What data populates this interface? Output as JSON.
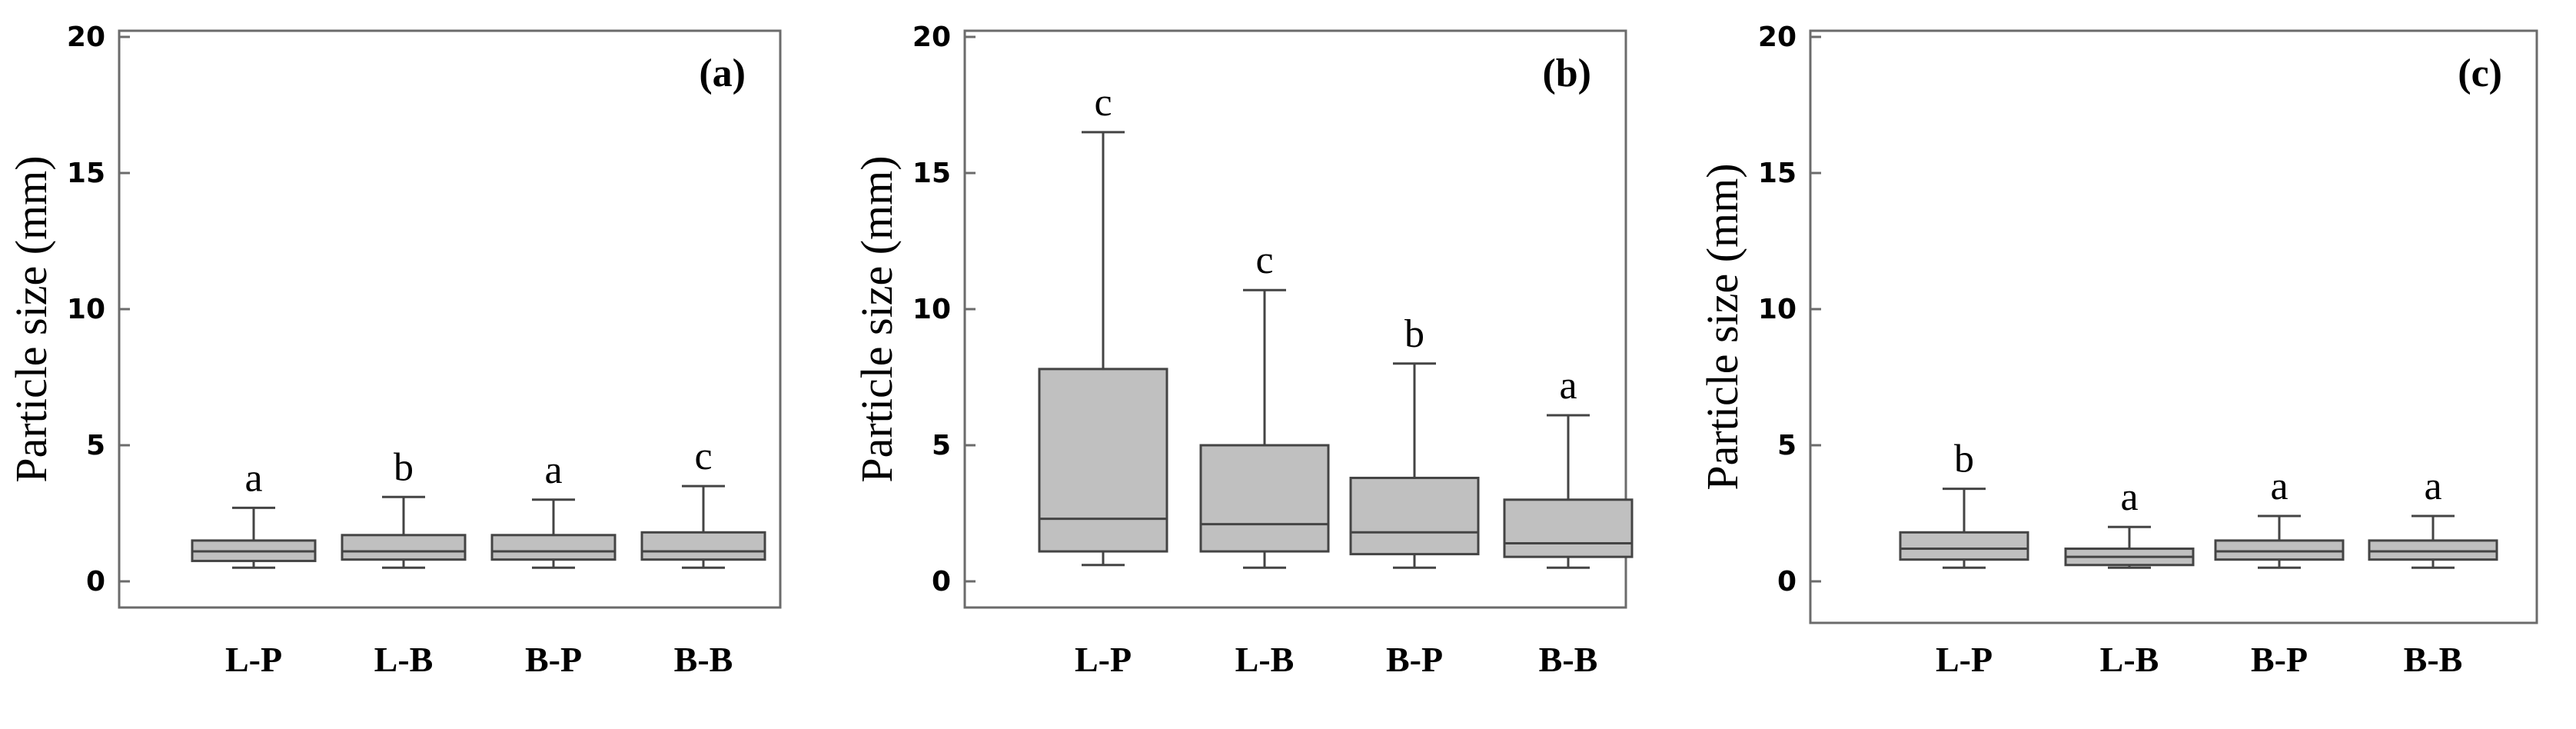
{
  "chart_data": [
    {
      "type": "box",
      "panel_label": "(a)",
      "ylabel": "Particle size (mm)",
      "ylim": [
        0,
        20
      ],
      "yticks": [
        "0",
        "5",
        "10",
        "15",
        "20"
      ],
      "categories": [
        "L-P",
        "L-B",
        "B-P",
        "B-B"
      ],
      "boxes": [
        {
          "category": "L-P",
          "min": 0.5,
          "q1": 0.75,
          "median": 1.1,
          "q3": 1.5,
          "max": 2.7,
          "letter": "a"
        },
        {
          "category": "L-B",
          "min": 0.5,
          "q1": 0.8,
          "median": 1.1,
          "q3": 1.7,
          "max": 3.1,
          "letter": "b"
        },
        {
          "category": "B-P",
          "min": 0.5,
          "q1": 0.8,
          "median": 1.1,
          "q3": 1.7,
          "max": 3.0,
          "letter": "a"
        },
        {
          "category": "B-B",
          "min": 0.5,
          "q1": 0.8,
          "median": 1.1,
          "q3": 1.8,
          "max": 3.5,
          "letter": "c"
        }
      ]
    },
    {
      "type": "box",
      "panel_label": "(b)",
      "ylabel": "Particle size (mm)",
      "ylim": [
        0,
        20
      ],
      "yticks": [
        "0",
        "5",
        "10",
        "15",
        "20"
      ],
      "categories": [
        "L-P",
        "L-B",
        "B-P",
        "B-B"
      ],
      "boxes": [
        {
          "category": "L-P",
          "min": 0.6,
          "q1": 1.1,
          "median": 2.3,
          "q3": 7.8,
          "max": 16.5,
          "letter": "c"
        },
        {
          "category": "L-B",
          "min": 0.5,
          "q1": 1.1,
          "median": 2.1,
          "q3": 5.0,
          "max": 10.7,
          "letter": "c"
        },
        {
          "category": "B-P",
          "min": 0.5,
          "q1": 1.0,
          "median": 1.8,
          "q3": 3.8,
          "max": 8.0,
          "letter": "b"
        },
        {
          "category": "B-B",
          "min": 0.5,
          "q1": 0.9,
          "median": 1.4,
          "q3": 3.0,
          "max": 6.1,
          "letter": "a"
        }
      ]
    },
    {
      "type": "box",
      "panel_label": "(c)",
      "ylabel": "Particle size (mm)",
      "ylim": [
        0,
        20
      ],
      "yticks": [
        "0",
        "5",
        "10",
        "15",
        "20"
      ],
      "categories": [
        "L-P",
        "L-B",
        "B-P",
        "B-B"
      ],
      "boxes": [
        {
          "category": "L-P",
          "min": 0.5,
          "q1": 0.8,
          "median": 1.2,
          "q3": 1.8,
          "max": 3.4,
          "letter": "b"
        },
        {
          "category": "L-B",
          "min": 0.5,
          "q1": 0.6,
          "median": 0.9,
          "q3": 1.2,
          "max": 2.0,
          "letter": "a"
        },
        {
          "category": "B-P",
          "min": 0.5,
          "q1": 0.8,
          "median": 1.1,
          "q3": 1.5,
          "max": 2.4,
          "letter": "a"
        },
        {
          "category": "B-B",
          "min": 0.5,
          "q1": 0.8,
          "median": 1.1,
          "q3": 1.5,
          "max": 2.4,
          "letter": "a"
        }
      ]
    }
  ]
}
